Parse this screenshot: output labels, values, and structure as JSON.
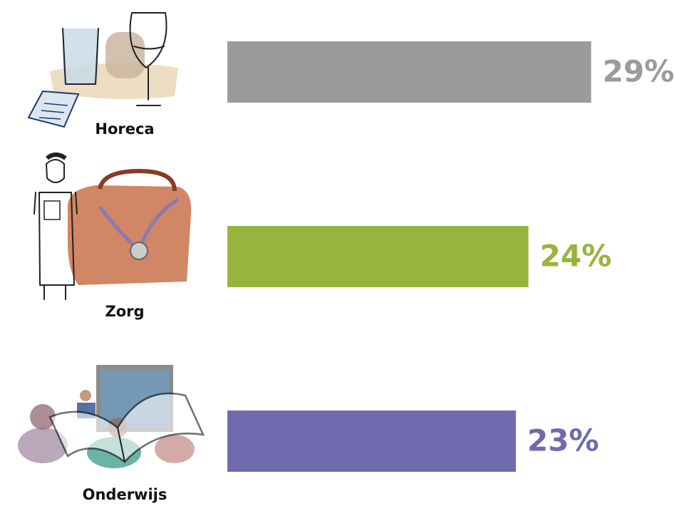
{
  "chart_data": {
    "type": "bar",
    "orientation": "horizontal",
    "categories": [
      "Horeca",
      "Zorg",
      "Onderwijs"
    ],
    "values": [
      29,
      24,
      23
    ],
    "value_labels": [
      "29%",
      "24%",
      "23%"
    ],
    "colors": [
      "#9b9b9b",
      "#97b43c",
      "#6f6aae"
    ]
  }
}
